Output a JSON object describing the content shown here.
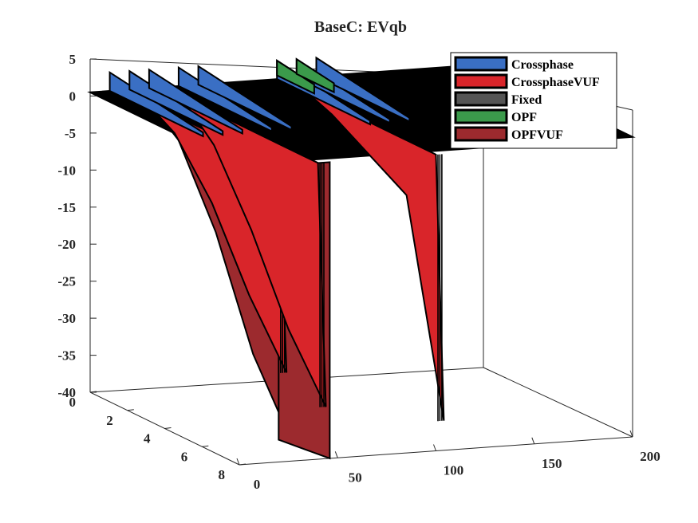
{
  "chart_data": {
    "type": "surface3d",
    "title": "BaseC: EVqb",
    "xlabel": "",
    "ylabel": "",
    "zlabel": "",
    "x_axis": {
      "ticks": [
        0,
        50,
        100,
        150,
        200
      ],
      "range": [
        0,
        200
      ]
    },
    "y_axis": {
      "ticks": [
        0,
        2,
        4,
        6,
        8
      ],
      "range": [
        0,
        8
      ]
    },
    "z_axis": {
      "ticks": [
        5,
        0,
        -5,
        -10,
        -15,
        -20,
        -25,
        -30,
        -35,
        -40
      ],
      "range": [
        -40,
        5
      ]
    },
    "grid": false,
    "legend": {
      "placement": "top-right",
      "entries": [
        {
          "name": "Crossphase",
          "color": "#3a6fc4"
        },
        {
          "name": "CrossphaseVUF",
          "color": "#d9252a"
        },
        {
          "name": "Fixed",
          "color": "#555555"
        },
        {
          "name": "OPF",
          "color": "#3b9a4b"
        },
        {
          "name": "OPFVUF",
          "color": "#9c2a2e"
        }
      ]
    },
    "series": [
      {
        "name": "Fixed",
        "color": "#000000",
        "description_values": {
          "z": 0
        }
      },
      {
        "name": "Crossphase",
        "color": "#3a6fc4",
        "spikes_x": [
          10,
          20,
          30,
          45,
          55,
          95,
          105,
          115
        ],
        "y_range": [
          0,
          8
        ],
        "z": 0
      },
      {
        "name": "CrossphaseVUF",
        "color": "#d9252a",
        "profiles": [
          {
            "x": 20,
            "y": [
              0,
              2,
              4,
              6,
              8
            ],
            "z": [
              0,
              -3,
              -10,
              -20,
              -28
            ]
          },
          {
            "x": 40,
            "y": [
              0,
              2,
              4,
              6,
              8
            ],
            "z": [
              0,
              -5,
              -14,
              -25,
              -33
            ]
          },
          {
            "x": 100,
            "y": [
              0,
              2,
              4,
              6,
              8
            ],
            "z": [
              0,
              -2,
              -5,
              -8,
              -36
            ]
          }
        ]
      },
      {
        "name": "OPF",
        "color": "#3b9a4b",
        "spikes_x": [
          95,
          105
        ],
        "z": 0
      },
      {
        "name": "OPFVUF",
        "color": "#9c2a2e",
        "profiles": [
          {
            "x": 20,
            "y": [
              0,
              2,
              4,
              6,
              8
            ],
            "z": [
              0,
              -4,
              -14,
              -28,
              -37
            ]
          },
          {
            "x": 40,
            "y": [
              0,
              2,
              4,
              6,
              8
            ],
            "z": [
              0,
              -6,
              -18,
              -32,
              -40
            ]
          }
        ]
      }
    ]
  }
}
